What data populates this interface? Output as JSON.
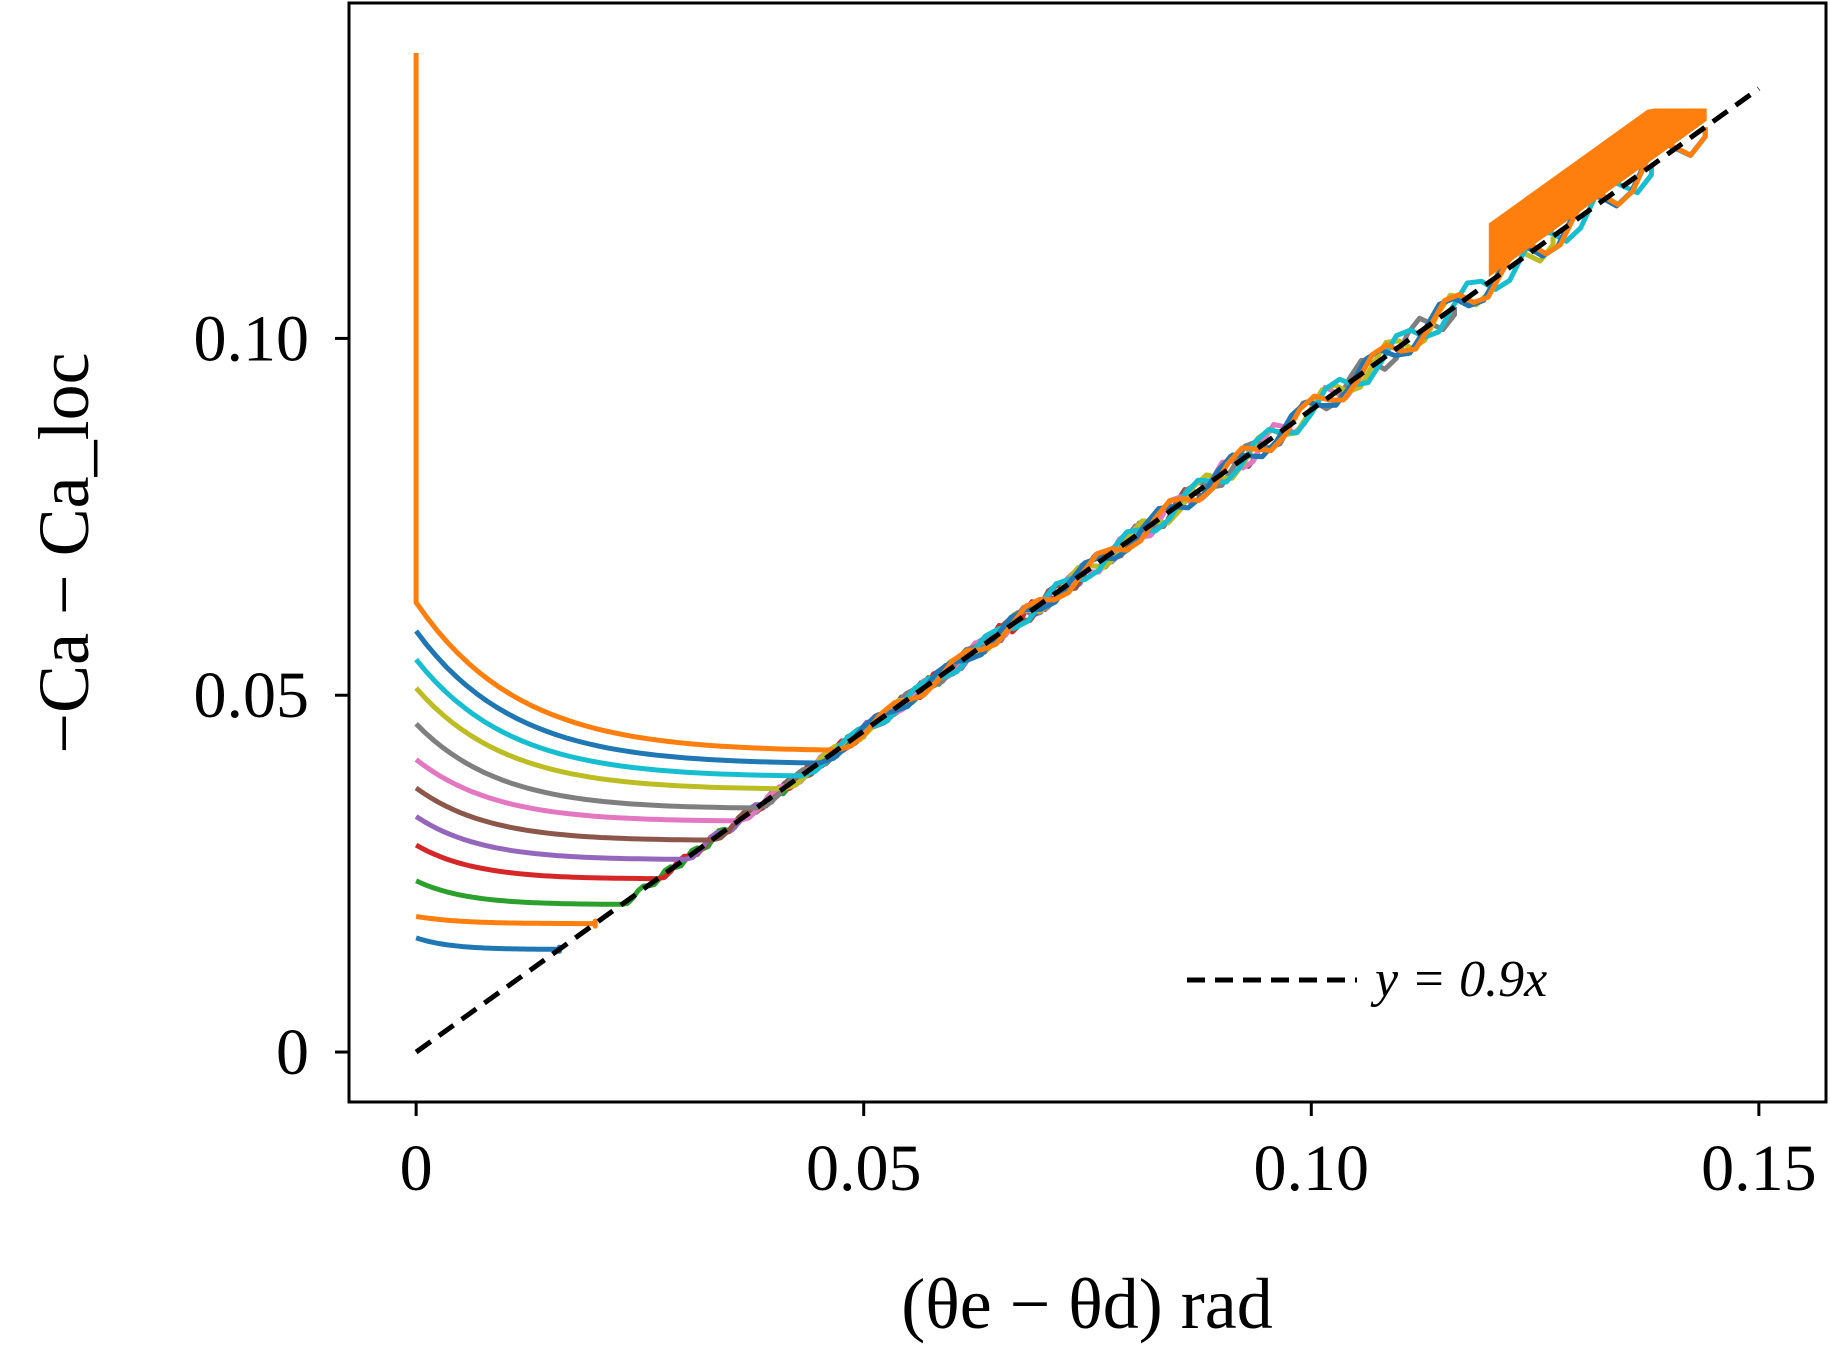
{
  "chart_data": {
    "type": "line",
    "xlabel": "(θe − θd) rad",
    "ylabel": "−Ca − Ca_loc",
    "xlim": [
      -0.0075,
      0.1575
    ],
    "ylim": [
      -0.007,
      0.147
    ],
    "xticks": [
      0,
      0.05,
      0.1,
      0.15
    ],
    "xtick_labels": [
      "0",
      "0.05",
      "0.10",
      "0.15"
    ],
    "yticks": [
      0,
      0.05,
      0.1
    ],
    "ytick_labels": [
      "0",
      "0.05",
      "0.10"
    ],
    "grid": false,
    "legend": {
      "position": "lower-right",
      "entries": [
        {
          "label": "y = 0.9x",
          "style": "dashed",
          "color": "#000000"
        }
      ]
    },
    "reference_line": {
      "label": "y = 0.9x",
      "slope": 0.9,
      "x": [
        0,
        0.15
      ],
      "color": "#000000",
      "style": "dashed"
    },
    "series": [
      {
        "color": "#1f77b4",
        "y0": 0.016,
        "x_end": 0.016,
        "x_tail": 0.016
      },
      {
        "color": "#ff7f0e",
        "y0": 0.019,
        "x_end": 0.02,
        "x_tail": 0.02
      },
      {
        "color": "#2ca02c",
        "y0": 0.024,
        "x_end": 0.023,
        "x_tail": 0.059
      },
      {
        "color": "#d62728",
        "y0": 0.029,
        "x_end": 0.027,
        "x_tail": 0.071
      },
      {
        "color": "#9467bd",
        "y0": 0.033,
        "x_end": 0.03,
        "x_tail": 0.083
      },
      {
        "color": "#8c564b",
        "y0": 0.037,
        "x_end": 0.033,
        "x_tail": 0.094
      },
      {
        "color": "#e377c2",
        "y0": 0.041,
        "x_end": 0.036,
        "x_tail": 0.105
      },
      {
        "color": "#7f7f7f",
        "y0": 0.046,
        "x_end": 0.038,
        "x_tail": 0.116
      },
      {
        "color": "#bcbd22",
        "y0": 0.051,
        "x_end": 0.041,
        "x_tail": 0.127
      },
      {
        "color": "#17becf",
        "y0": 0.055,
        "x_end": 0.043,
        "x_tail": 0.138
      },
      {
        "color": "#1f77b4",
        "y0": 0.059,
        "x_end": 0.045,
        "x_tail": 0.144
      },
      {
        "color": "#ff7f0e",
        "y0": 0.063,
        "x_end": 0.047,
        "x_tail": 0.144,
        "spike_top": 0.14
      }
    ]
  }
}
